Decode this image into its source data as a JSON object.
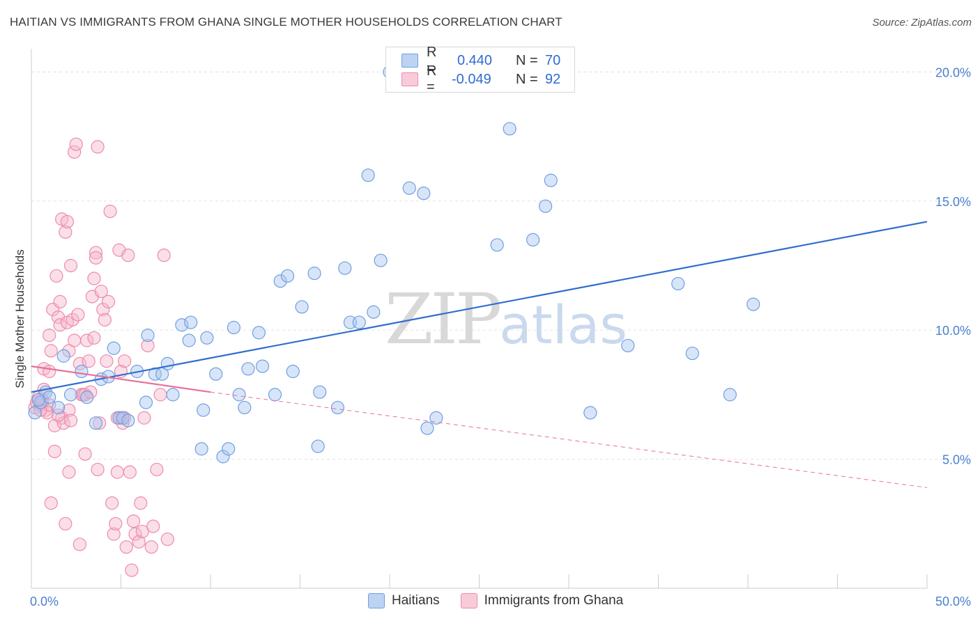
{
  "title": "HAITIAN VS IMMIGRANTS FROM GHANA SINGLE MOTHER HOUSEHOLDS CORRELATION CHART",
  "source": "Source: ZipAtlas.com",
  "watermark": {
    "zip": "ZIP",
    "atlas": "atlas"
  },
  "legend": {
    "rows": [
      {
        "r_label": "R =",
        "r_value": "0.440",
        "n_label": "N =",
        "n_value": "70",
        "color": "#a9c6ef"
      },
      {
        "r_label": "R =",
        "r_value": "-0.049",
        "n_label": "N =",
        "n_value": "92",
        "color": "#f5b8cb"
      }
    ]
  },
  "bottom_legend": [
    {
      "label": "Haitians",
      "color": "#a9c6ef"
    },
    {
      "label": "Immigrants from Ghana",
      "color": "#f5b8cb"
    }
  ],
  "chart_data": {
    "type": "scatter",
    "title": "HAITIAN VS IMMIGRANTS FROM GHANA SINGLE MOTHER HOUSEHOLDS CORRELATION CHART",
    "xlabel": "",
    "ylabel": "Single Mother Households",
    "xlim": [
      0,
      50
    ],
    "ylim": [
      0,
      20.9
    ],
    "x_tick_labels": [
      "0.0%",
      "50.0%"
    ],
    "y_ticks": [
      5,
      10,
      15,
      20
    ],
    "y_tick_labels": [
      "5.0%",
      "10.0%",
      "15.0%",
      "20.0%"
    ],
    "grid": "horizontal dashed",
    "legend_position": "top-center",
    "series": [
      {
        "name": "Haitians",
        "color": "#6f9fe0",
        "fill": "#a9c6ef",
        "trend": {
          "x0": 0,
          "y0": 7.6,
          "x1": 50,
          "y1": 14.2,
          "style": "solid",
          "color": "#2f6ccf"
        },
        "points": [
          [
            0.2,
            6.8
          ],
          [
            0.5,
            7.2
          ],
          [
            0.8,
            7.6
          ],
          [
            1.0,
            7.4
          ],
          [
            1.5,
            7.0
          ],
          [
            1.8,
            9.0
          ],
          [
            2.2,
            7.5
          ],
          [
            2.8,
            8.4
          ],
          [
            3.1,
            7.4
          ],
          [
            3.6,
            6.4
          ],
          [
            3.9,
            8.1
          ],
          [
            4.3,
            8.2
          ],
          [
            4.6,
            9.3
          ],
          [
            4.9,
            6.6
          ],
          [
            5.1,
            6.6
          ],
          [
            5.4,
            6.5
          ],
          [
            5.9,
            8.4
          ],
          [
            6.4,
            7.2
          ],
          [
            6.5,
            9.8
          ],
          [
            6.9,
            8.3
          ],
          [
            7.3,
            8.3
          ],
          [
            7.6,
            8.7
          ],
          [
            7.9,
            7.5
          ],
          [
            8.4,
            10.2
          ],
          [
            8.8,
            9.6
          ],
          [
            8.9,
            10.3
          ],
          [
            9.5,
            5.4
          ],
          [
            9.6,
            6.9
          ],
          [
            9.8,
            9.7
          ],
          [
            10.3,
            8.3
          ],
          [
            10.7,
            5.1
          ],
          [
            11.0,
            5.4
          ],
          [
            11.3,
            10.1
          ],
          [
            11.6,
            7.5
          ],
          [
            11.9,
            7.0
          ],
          [
            12.1,
            8.5
          ],
          [
            12.7,
            9.9
          ],
          [
            12.9,
            8.6
          ],
          [
            13.6,
            7.5
          ],
          [
            13.9,
            11.9
          ],
          [
            14.3,
            12.1
          ],
          [
            14.6,
            8.4
          ],
          [
            15.1,
            10.9
          ],
          [
            15.8,
            12.2
          ],
          [
            16.0,
            5.5
          ],
          [
            16.1,
            7.6
          ],
          [
            17.1,
            7.0
          ],
          [
            17.5,
            12.4
          ],
          [
            17.8,
            10.3
          ],
          [
            18.3,
            10.3
          ],
          [
            18.8,
            16.0
          ],
          [
            19.1,
            10.7
          ],
          [
            19.5,
            12.7
          ],
          [
            20.0,
            20.0
          ],
          [
            21.1,
            15.5
          ],
          [
            21.9,
            15.3
          ],
          [
            22.1,
            6.2
          ],
          [
            22.6,
            6.6
          ],
          [
            26.0,
            13.3
          ],
          [
            26.7,
            17.8
          ],
          [
            28.0,
            13.5
          ],
          [
            28.7,
            14.8
          ],
          [
            29.0,
            15.8
          ],
          [
            31.2,
            6.8
          ],
          [
            33.3,
            9.4
          ],
          [
            36.1,
            11.8
          ],
          [
            36.9,
            9.1
          ],
          [
            39.0,
            7.5
          ],
          [
            40.3,
            11.0
          ],
          [
            0.4,
            7.3
          ]
        ]
      },
      {
        "name": "Immigrants from Ghana",
        "color": "#ee8aab",
        "fill": "#f5b8cb",
        "trend": {
          "x0": 0,
          "y0": 8.6,
          "x1": 10,
          "y1": 7.6,
          "dashed_to": [
            50,
            3.9
          ],
          "style": "solid-then-dashed",
          "color": "#e8709a"
        },
        "points": [
          [
            0.2,
            7.0
          ],
          [
            0.3,
            7.2
          ],
          [
            0.4,
            7.4
          ],
          [
            0.5,
            7.1
          ],
          [
            0.6,
            7.3
          ],
          [
            0.7,
            8.5
          ],
          [
            0.7,
            7.7
          ],
          [
            0.8,
            6.9
          ],
          [
            0.9,
            6.8
          ],
          [
            1.0,
            8.4
          ],
          [
            1.0,
            9.8
          ],
          [
            1.1,
            9.2
          ],
          [
            1.2,
            10.8
          ],
          [
            1.3,
            6.3
          ],
          [
            1.3,
            5.3
          ],
          [
            1.4,
            12.1
          ],
          [
            1.5,
            10.5
          ],
          [
            1.6,
            11.1
          ],
          [
            1.6,
            10.2
          ],
          [
            1.7,
            6.6
          ],
          [
            1.7,
            14.3
          ],
          [
            1.8,
            6.4
          ],
          [
            1.9,
            13.8
          ],
          [
            2.0,
            14.2
          ],
          [
            2.0,
            10.3
          ],
          [
            2.1,
            9.2
          ],
          [
            2.1,
            6.9
          ],
          [
            2.1,
            4.5
          ],
          [
            2.2,
            12.5
          ],
          [
            2.3,
            10.4
          ],
          [
            2.4,
            9.6
          ],
          [
            2.4,
            16.9
          ],
          [
            2.5,
            17.2
          ],
          [
            2.6,
            10.6
          ],
          [
            2.7,
            8.7
          ],
          [
            2.8,
            7.5
          ],
          [
            2.9,
            7.5
          ],
          [
            3.0,
            7.5
          ],
          [
            3.1,
            9.6
          ],
          [
            3.2,
            8.8
          ],
          [
            3.3,
            7.6
          ],
          [
            3.4,
            11.3
          ],
          [
            3.5,
            9.7
          ],
          [
            3.5,
            12.0
          ],
          [
            3.6,
            13.0
          ],
          [
            3.6,
            12.8
          ],
          [
            3.7,
            17.1
          ],
          [
            3.8,
            6.4
          ],
          [
            3.9,
            11.5
          ],
          [
            4.0,
            10.8
          ],
          [
            4.1,
            10.4
          ],
          [
            4.2,
            8.8
          ],
          [
            4.3,
            11.1
          ],
          [
            4.4,
            14.6
          ],
          [
            4.5,
            3.3
          ],
          [
            4.6,
            2.1
          ],
          [
            4.7,
            2.5
          ],
          [
            4.8,
            4.5
          ],
          [
            4.9,
            13.1
          ],
          [
            5.0,
            8.4
          ],
          [
            5.0,
            6.6
          ],
          [
            5.1,
            6.4
          ],
          [
            5.2,
            8.8
          ],
          [
            5.3,
            1.6
          ],
          [
            5.4,
            12.9
          ],
          [
            5.5,
            4.5
          ],
          [
            5.6,
            0.7
          ],
          [
            5.7,
            2.6
          ],
          [
            5.8,
            2.1
          ],
          [
            6.0,
            1.8
          ],
          [
            6.1,
            3.3
          ],
          [
            6.2,
            2.2
          ],
          [
            6.3,
            6.6
          ],
          [
            6.5,
            9.4
          ],
          [
            6.7,
            1.6
          ],
          [
            6.8,
            2.4
          ],
          [
            7.0,
            4.6
          ],
          [
            7.2,
            7.5
          ],
          [
            7.4,
            12.9
          ],
          [
            7.6,
            1.9
          ],
          [
            1.5,
            6.7
          ],
          [
            2.2,
            6.5
          ],
          [
            3.0,
            5.2
          ],
          [
            3.7,
            4.6
          ],
          [
            4.8,
            6.6
          ],
          [
            5.2,
            6.6
          ],
          [
            1.0,
            7.1
          ],
          [
            0.6,
            7.2
          ],
          [
            0.5,
            6.9
          ],
          [
            1.1,
            3.3
          ],
          [
            1.9,
            2.5
          ],
          [
            2.7,
            1.7
          ]
        ]
      }
    ]
  }
}
